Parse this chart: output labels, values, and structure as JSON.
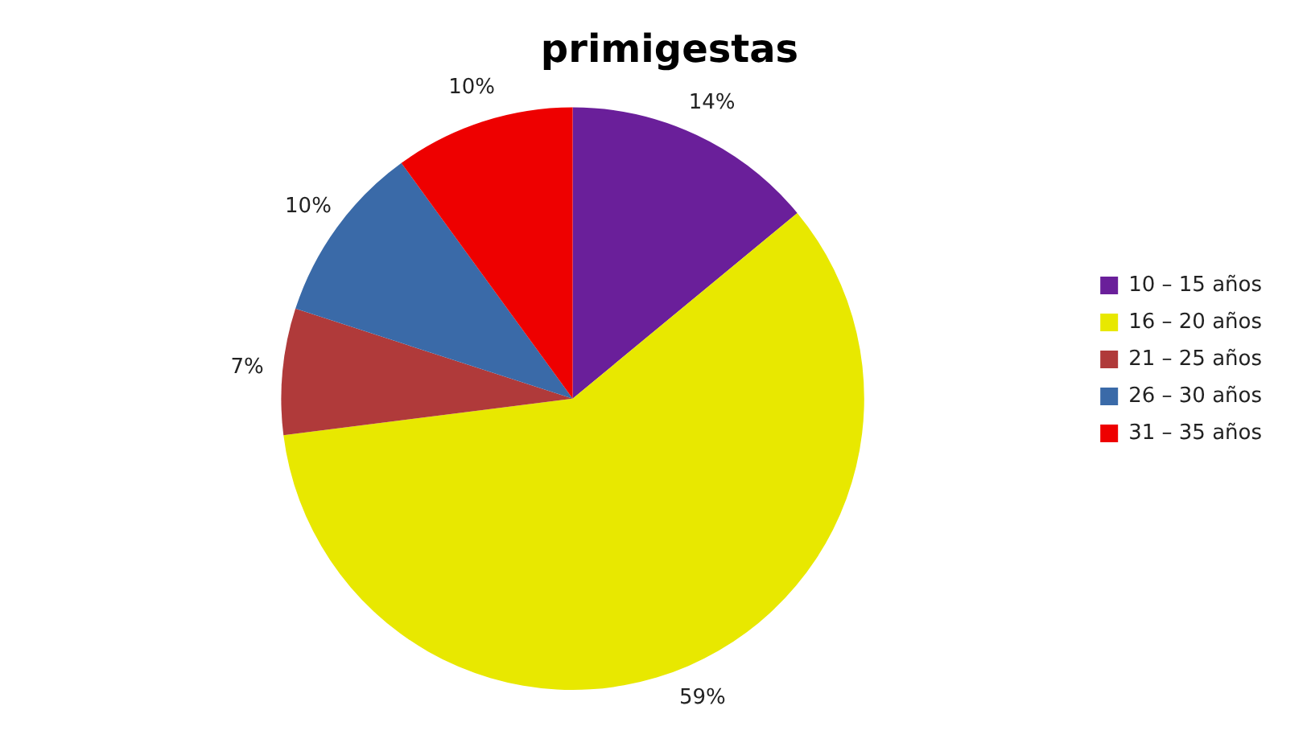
{
  "chart_data": {
    "type": "pie",
    "title": "primigestas",
    "categories": [
      "10 – 15 años",
      "16 – 20 años",
      "21 – 25 años",
      "26 – 30 años",
      "31 – 35 años"
    ],
    "values": [
      14,
      59,
      7,
      10,
      10
    ],
    "colors": [
      "#6a1f9a",
      "#e8e800",
      "#b03a3a",
      "#3a6aa8",
      "#ee0000"
    ],
    "value_labels": [
      "14%",
      "59%",
      "7%",
      "10%",
      "10%"
    ],
    "legend": "right"
  }
}
